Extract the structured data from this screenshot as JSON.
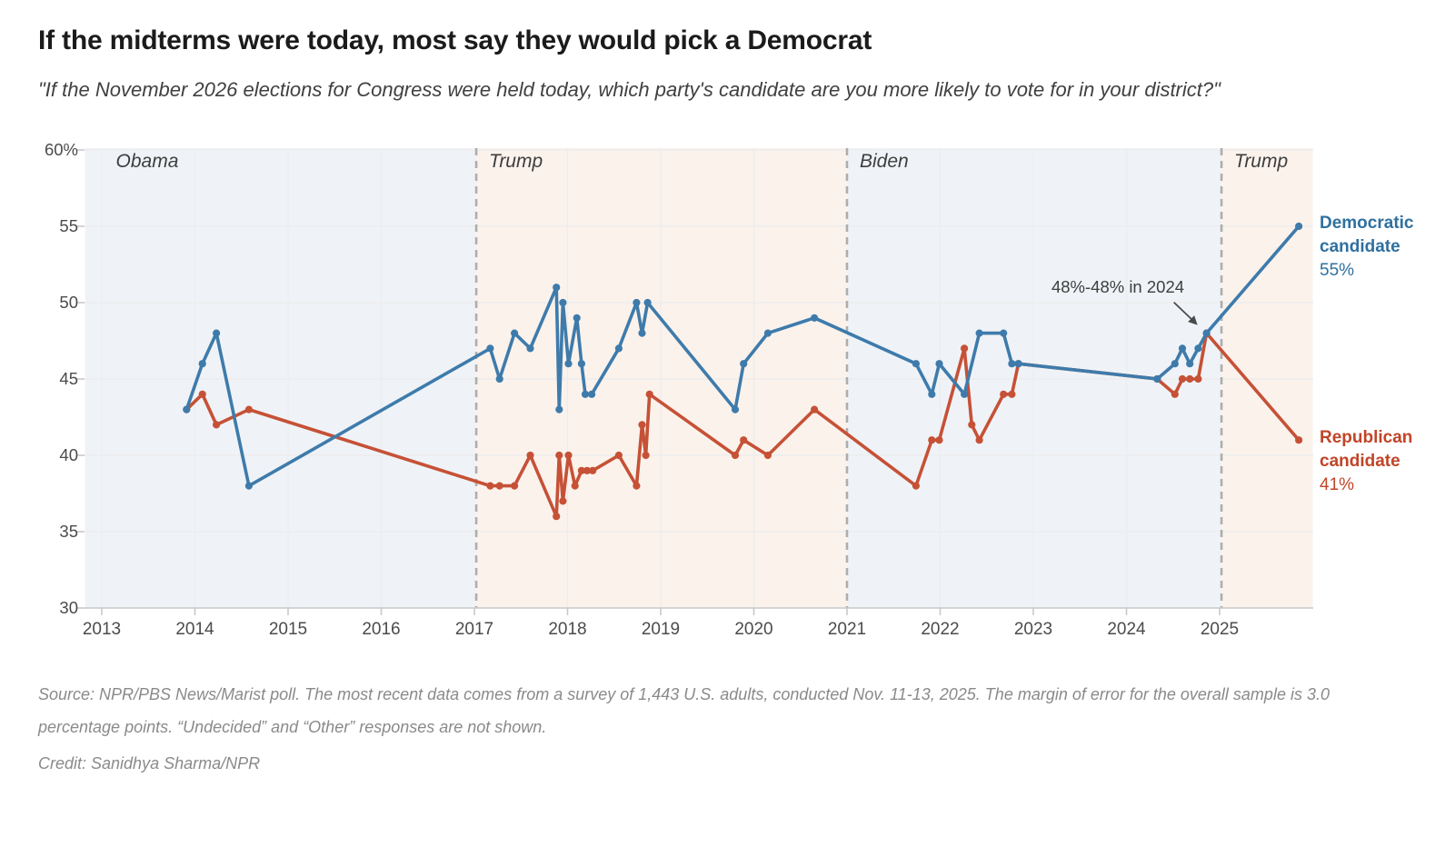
{
  "header": {
    "title": "If the midterms were today, most say they would pick a Democrat",
    "subtitle": "\"If the November 2026 elections for Congress were held today, which party's candidate are you more likely to vote for in your district?\""
  },
  "footer": {
    "source": "Source: NPR/PBS News/Marist poll. The most recent data comes from a survey of 1,443 U.S. adults, conducted Nov. 11-13, 2025. The margin of error for the overall sample is 3.0 percentage points. “Undecided” and “Other” responses are not shown.",
    "credit": "Credit: Sanidhya Sharma/NPR"
  },
  "chart_data": {
    "type": "line",
    "title": "If the midterms were today, most say they would pick a Democrat",
    "x_axis": {
      "range": [
        2012.82,
        2026.0
      ],
      "tick_years": [
        2013,
        2014,
        2015,
        2016,
        2017,
        2018,
        2019,
        2020,
        2021,
        2022,
        2023,
        2024,
        2025
      ],
      "grid": true
    },
    "y_axis": {
      "range": [
        30,
        60
      ],
      "tick_values": [
        60,
        55,
        50,
        45,
        40,
        35,
        30
      ],
      "tick_labels": [
        "60%",
        "55",
        "50",
        "45",
        "40",
        "35",
        "30"
      ],
      "grid": true
    },
    "eras": [
      {
        "label": "Obama",
        "start": 2012.82,
        "end": 2017.02,
        "color": "#eff3f7"
      },
      {
        "label": "Trump",
        "start": 2017.02,
        "end": 2021.0,
        "color": "#fbf2ec"
      },
      {
        "label": "Biden",
        "start": 2021.0,
        "end": 2025.02,
        "color": "#eff3f7"
      },
      {
        "label": "Trump",
        "start": 2025.02,
        "end": 2026.0,
        "color": "#fbf2ec"
      }
    ],
    "divider_years": [
      2017.02,
      2021.0,
      2025.02
    ],
    "divider_color": "#adadad",
    "gridline_color": "#ededed",
    "axis_color": "#c9c9c9",
    "annotation": {
      "text": "48%-48% in 2024",
      "points_to_year": 2024.86,
      "points_to_value": 48
    },
    "series": [
      {
        "name": "Republican candidate",
        "color": "#c65136",
        "label_lines": [
          "Republican",
          "candidate"
        ],
        "value_label": "41%",
        "points": [
          [
            2013.91,
            43
          ],
          [
            2014.08,
            44
          ],
          [
            2014.23,
            42
          ],
          [
            2014.58,
            43
          ],
          [
            2017.17,
            38
          ],
          [
            2017.27,
            38
          ],
          [
            2017.43,
            38
          ],
          [
            2017.6,
            40
          ],
          [
            2017.88,
            36
          ],
          [
            2017.91,
            40
          ],
          [
            2017.95,
            37
          ],
          [
            2018.01,
            40
          ],
          [
            2018.08,
            38
          ],
          [
            2018.15,
            39
          ],
          [
            2018.21,
            39
          ],
          [
            2018.27,
            39
          ],
          [
            2018.55,
            40
          ],
          [
            2018.74,
            38
          ],
          [
            2018.8,
            42
          ],
          [
            2018.84,
            40
          ],
          [
            2018.88,
            44
          ],
          [
            2019.8,
            40
          ],
          [
            2019.89,
            41
          ],
          [
            2020.15,
            40
          ],
          [
            2020.65,
            43
          ],
          [
            2021.74,
            38
          ],
          [
            2021.91,
            41
          ],
          [
            2021.99,
            41
          ],
          [
            2022.26,
            47
          ],
          [
            2022.34,
            42
          ],
          [
            2022.42,
            41
          ],
          [
            2022.68,
            44
          ],
          [
            2022.77,
            44
          ],
          [
            2022.84,
            46
          ],
          [
            2024.33,
            45
          ],
          [
            2024.52,
            44
          ],
          [
            2024.6,
            45
          ],
          [
            2024.68,
            45
          ],
          [
            2024.77,
            45
          ],
          [
            2024.86,
            48
          ],
          [
            2025.85,
            41
          ]
        ]
      },
      {
        "name": "Democratic candidate",
        "color": "#3e7bab",
        "label_lines": [
          "Democratic",
          "candidate"
        ],
        "value_label": "55%",
        "points": [
          [
            2013.91,
            43
          ],
          [
            2014.08,
            46
          ],
          [
            2014.23,
            48
          ],
          [
            2014.58,
            38
          ],
          [
            2017.17,
            47
          ],
          [
            2017.27,
            45
          ],
          [
            2017.43,
            48
          ],
          [
            2017.6,
            47
          ],
          [
            2017.88,
            51
          ],
          [
            2017.91,
            43
          ],
          [
            2017.95,
            50
          ],
          [
            2018.01,
            46
          ],
          [
            2018.1,
            49
          ],
          [
            2018.15,
            46
          ],
          [
            2018.19,
            44
          ],
          [
            2018.26,
            44
          ],
          [
            2018.55,
            47
          ],
          [
            2018.74,
            50
          ],
          [
            2018.8,
            48
          ],
          [
            2018.86,
            50
          ],
          [
            2019.8,
            43
          ],
          [
            2019.89,
            46
          ],
          [
            2020.15,
            48
          ],
          [
            2020.65,
            49
          ],
          [
            2021.74,
            46
          ],
          [
            2021.91,
            44
          ],
          [
            2021.99,
            46
          ],
          [
            2022.26,
            44
          ],
          [
            2022.42,
            48
          ],
          [
            2022.68,
            48
          ],
          [
            2022.77,
            46
          ],
          [
            2022.84,
            46
          ],
          [
            2024.33,
            45
          ],
          [
            2024.52,
            46
          ],
          [
            2024.6,
            47
          ],
          [
            2024.68,
            46
          ],
          [
            2024.77,
            47
          ],
          [
            2024.86,
            48
          ],
          [
            2025.85,
            55
          ]
        ]
      }
    ]
  }
}
